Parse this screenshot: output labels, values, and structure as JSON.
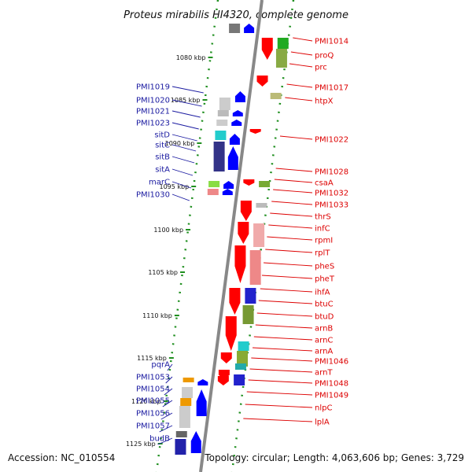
{
  "title": "Proteus mirabilis HI4320, complete genome",
  "footer": {
    "accession": "Accession: NC_010554",
    "topology": "Topology: circular; Length: 4,063,606 bp; Genes: 3,729"
  },
  "colors": {
    "reverse_strand_label": "#1a1aa0",
    "forward_strand_label": "#dd0000",
    "reverse_arrow": "#0000ff",
    "forward_arrow": "#ff0000",
    "track_ticks": "#1f8f1f",
    "backbone": "#888888"
  },
  "kbp_ticks": [
    "1080 kbp",
    "1085 kbp",
    "1090 kbp",
    "1095 kbp",
    "1100 kbp",
    "1105 kbp",
    "1110 kbp",
    "1115 kbp",
    "1120 kbp",
    "1125 kbp"
  ],
  "left_genes": [
    "PMI1019",
    "PMI1020",
    "PMI1021",
    "PMI1023",
    "sitD",
    "sitC",
    "sitB",
    "sitA",
    "marC",
    "PMI1030",
    "pqrA",
    "PMI1053",
    "PMI1054",
    "PMI1055",
    "PMI1056",
    "PMI1057",
    "budB"
  ],
  "right_genes": [
    "PMI1014",
    "proQ",
    "prc",
    "PMI1017",
    "htpX",
    "PMI1022",
    "PMI1028",
    "csaA",
    "PMI1032",
    "PMI1033",
    "thrS",
    "infC",
    "rpmI",
    "rplT",
    "pheS",
    "pheT",
    "ihfA",
    "btuC",
    "btuD",
    "arnB",
    "arnC",
    "arnA",
    "PMI1046",
    "arnT",
    "PMI1048",
    "PMI1049",
    "nlpC",
    "lplA"
  ]
}
